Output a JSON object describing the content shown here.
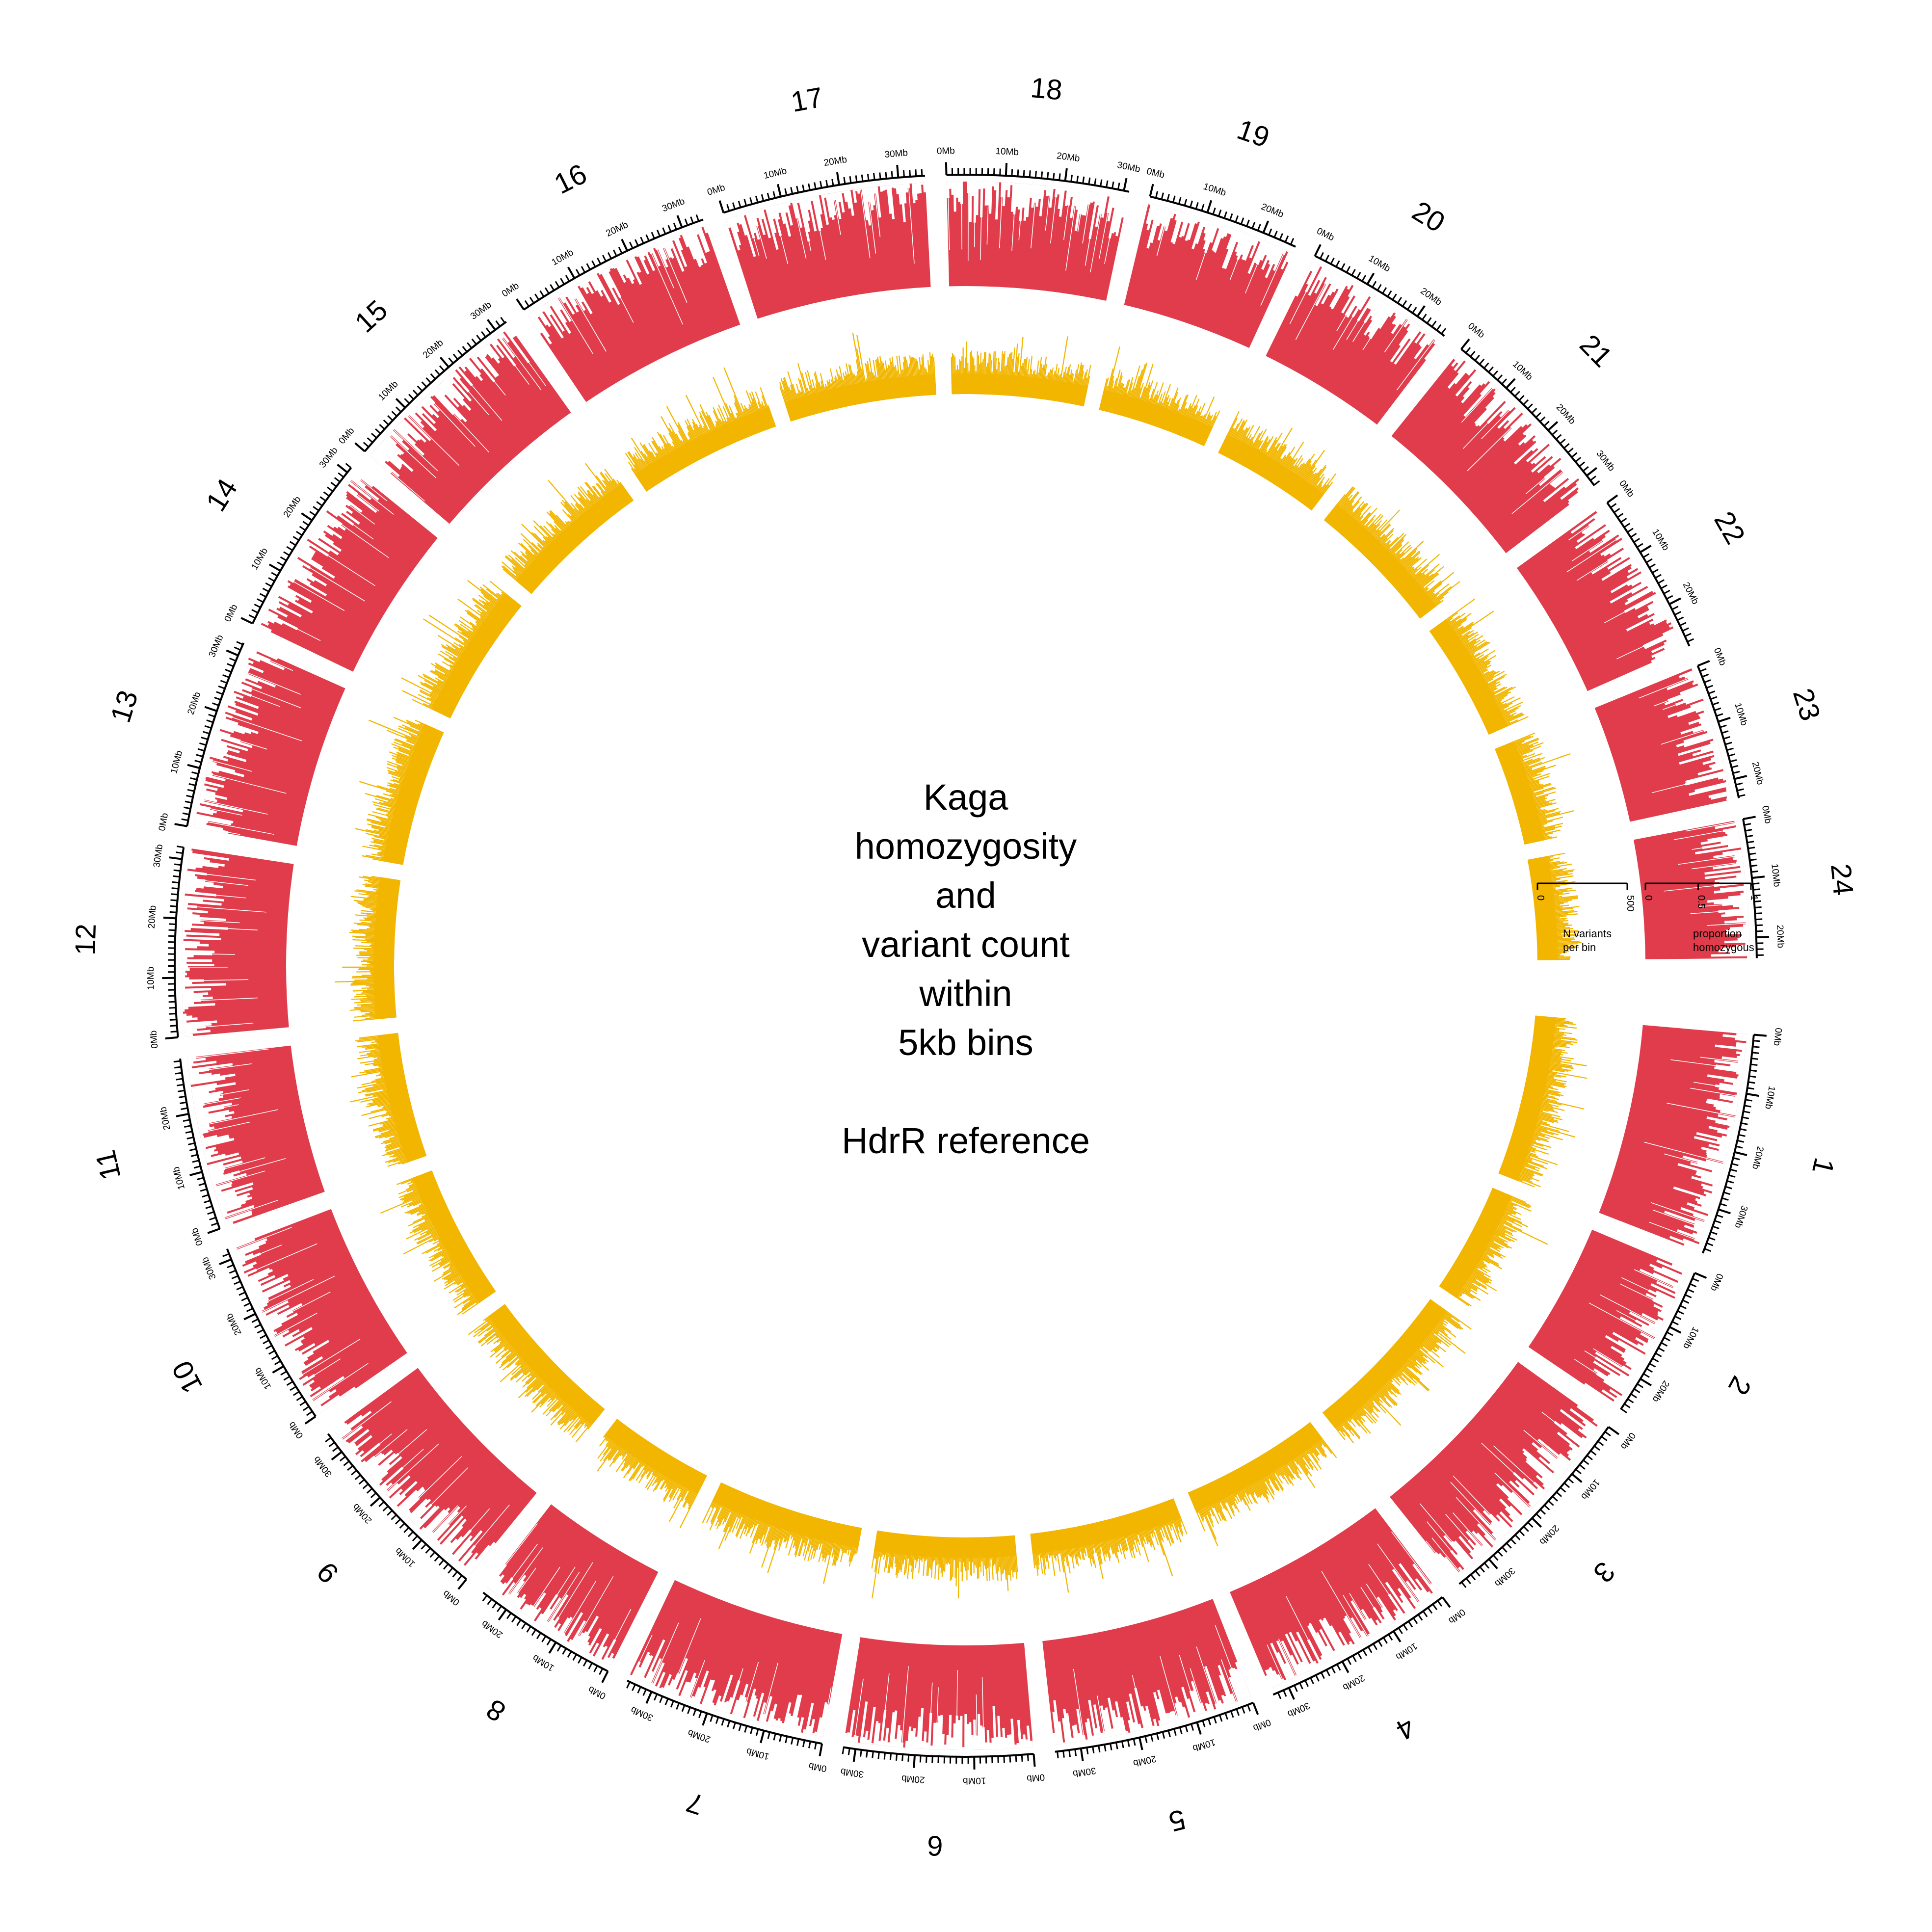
{
  "chart_data": {
    "type": "circos",
    "title_lines": [
      "Kaga",
      "homozygosity",
      "and",
      "variant count",
      "within",
      "5kb bins",
      "",
      "HdrR reference"
    ],
    "tracks": [
      {
        "name": "proportion homozygous",
        "label_lines": [
          "proportion",
          "homozygous"
        ],
        "color": "#E03C4B",
        "ylim": [
          0,
          1
        ],
        "ticks": [
          "0",
          "0.5",
          "1"
        ]
      },
      {
        "name": "N variants per bin",
        "label_lines": [
          "N variants",
          "per bin"
        ],
        "color": "#F2B600",
        "ylim": [
          0,
          500
        ],
        "ticks": [
          "0",
          "500"
        ]
      }
    ],
    "tick_unit": "Mb",
    "tick_label_step_mb": 10,
    "chromosomes": [
      {
        "name": "1",
        "length_mb": 37.8
      },
      {
        "name": "2",
        "length_mb": 26.1
      },
      {
        "name": "3",
        "length_mb": 36.5
      },
      {
        "name": "4",
        "length_mb": 32.9
      },
      {
        "name": "5",
        "length_mb": 34.4
      },
      {
        "name": "6",
        "length_mb": 32.1
      },
      {
        "name": "7",
        "length_mb": 34.5
      },
      {
        "name": "8",
        "length_mb": 24.8
      },
      {
        "name": "9",
        "length_mb": 33.8
      },
      {
        "name": "10",
        "length_mb": 31.9
      },
      {
        "name": "11",
        "length_mb": 29.4
      },
      {
        "name": "12",
        "length_mb": 32.0
      },
      {
        "name": "13",
        "length_mb": 32.3
      },
      {
        "name": "14",
        "length_mb": 31.0
      },
      {
        "name": "15",
        "length_mb": 32.3
      },
      {
        "name": "16",
        "length_mb": 33.8
      },
      {
        "name": "17",
        "length_mb": 34.5
      },
      {
        "name": "18",
        "length_mb": 30.9
      },
      {
        "name": "19",
        "length_mb": 25.9
      },
      {
        "name": "20",
        "length_mb": 25.6
      },
      {
        "name": "21",
        "length_mb": 32.1
      },
      {
        "name": "22",
        "length_mb": 27.8
      },
      {
        "name": "23",
        "length_mb": 23.3
      },
      {
        "name": "24",
        "length_mb": 23.5
      }
    ]
  }
}
